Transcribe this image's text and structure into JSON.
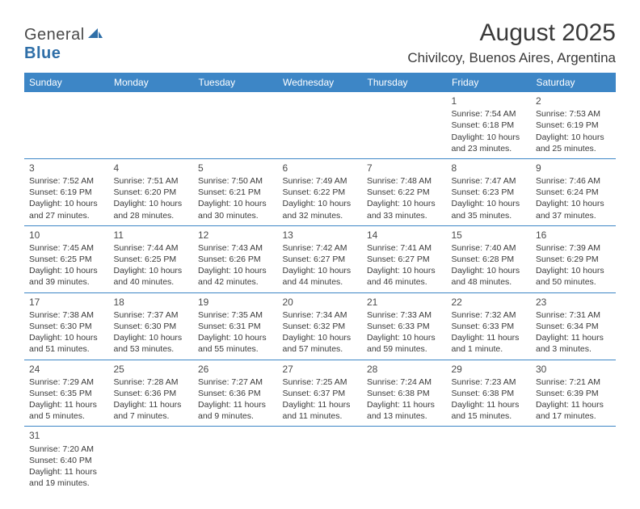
{
  "logo": {
    "part1": "General",
    "part2": "Blue"
  },
  "title": "August 2025",
  "location": "Chivilcoy, Buenos Aires, Argentina",
  "header_bg": "#3d86c6",
  "header_fg": "#ffffff",
  "border_color": "#3d86c6",
  "text_color": "#3a3a3a",
  "day_headers": [
    "Sunday",
    "Monday",
    "Tuesday",
    "Wednesday",
    "Thursday",
    "Friday",
    "Saturday"
  ],
  "weeks": [
    [
      null,
      null,
      null,
      null,
      null,
      {
        "n": "1",
        "sr": "Sunrise: 7:54 AM",
        "ss": "Sunset: 6:18 PM",
        "dl": "Daylight: 10 hours and 23 minutes."
      },
      {
        "n": "2",
        "sr": "Sunrise: 7:53 AM",
        "ss": "Sunset: 6:19 PM",
        "dl": "Daylight: 10 hours and 25 minutes."
      }
    ],
    [
      {
        "n": "3",
        "sr": "Sunrise: 7:52 AM",
        "ss": "Sunset: 6:19 PM",
        "dl": "Daylight: 10 hours and 27 minutes."
      },
      {
        "n": "4",
        "sr": "Sunrise: 7:51 AM",
        "ss": "Sunset: 6:20 PM",
        "dl": "Daylight: 10 hours and 28 minutes."
      },
      {
        "n": "5",
        "sr": "Sunrise: 7:50 AM",
        "ss": "Sunset: 6:21 PM",
        "dl": "Daylight: 10 hours and 30 minutes."
      },
      {
        "n": "6",
        "sr": "Sunrise: 7:49 AM",
        "ss": "Sunset: 6:22 PM",
        "dl": "Daylight: 10 hours and 32 minutes."
      },
      {
        "n": "7",
        "sr": "Sunrise: 7:48 AM",
        "ss": "Sunset: 6:22 PM",
        "dl": "Daylight: 10 hours and 33 minutes."
      },
      {
        "n": "8",
        "sr": "Sunrise: 7:47 AM",
        "ss": "Sunset: 6:23 PM",
        "dl": "Daylight: 10 hours and 35 minutes."
      },
      {
        "n": "9",
        "sr": "Sunrise: 7:46 AM",
        "ss": "Sunset: 6:24 PM",
        "dl": "Daylight: 10 hours and 37 minutes."
      }
    ],
    [
      {
        "n": "10",
        "sr": "Sunrise: 7:45 AM",
        "ss": "Sunset: 6:25 PM",
        "dl": "Daylight: 10 hours and 39 minutes."
      },
      {
        "n": "11",
        "sr": "Sunrise: 7:44 AM",
        "ss": "Sunset: 6:25 PM",
        "dl": "Daylight: 10 hours and 40 minutes."
      },
      {
        "n": "12",
        "sr": "Sunrise: 7:43 AM",
        "ss": "Sunset: 6:26 PM",
        "dl": "Daylight: 10 hours and 42 minutes."
      },
      {
        "n": "13",
        "sr": "Sunrise: 7:42 AM",
        "ss": "Sunset: 6:27 PM",
        "dl": "Daylight: 10 hours and 44 minutes."
      },
      {
        "n": "14",
        "sr": "Sunrise: 7:41 AM",
        "ss": "Sunset: 6:27 PM",
        "dl": "Daylight: 10 hours and 46 minutes."
      },
      {
        "n": "15",
        "sr": "Sunrise: 7:40 AM",
        "ss": "Sunset: 6:28 PM",
        "dl": "Daylight: 10 hours and 48 minutes."
      },
      {
        "n": "16",
        "sr": "Sunrise: 7:39 AM",
        "ss": "Sunset: 6:29 PM",
        "dl": "Daylight: 10 hours and 50 minutes."
      }
    ],
    [
      {
        "n": "17",
        "sr": "Sunrise: 7:38 AM",
        "ss": "Sunset: 6:30 PM",
        "dl": "Daylight: 10 hours and 51 minutes."
      },
      {
        "n": "18",
        "sr": "Sunrise: 7:37 AM",
        "ss": "Sunset: 6:30 PM",
        "dl": "Daylight: 10 hours and 53 minutes."
      },
      {
        "n": "19",
        "sr": "Sunrise: 7:35 AM",
        "ss": "Sunset: 6:31 PM",
        "dl": "Daylight: 10 hours and 55 minutes."
      },
      {
        "n": "20",
        "sr": "Sunrise: 7:34 AM",
        "ss": "Sunset: 6:32 PM",
        "dl": "Daylight: 10 hours and 57 minutes."
      },
      {
        "n": "21",
        "sr": "Sunrise: 7:33 AM",
        "ss": "Sunset: 6:33 PM",
        "dl": "Daylight: 10 hours and 59 minutes."
      },
      {
        "n": "22",
        "sr": "Sunrise: 7:32 AM",
        "ss": "Sunset: 6:33 PM",
        "dl": "Daylight: 11 hours and 1 minute."
      },
      {
        "n": "23",
        "sr": "Sunrise: 7:31 AM",
        "ss": "Sunset: 6:34 PM",
        "dl": "Daylight: 11 hours and 3 minutes."
      }
    ],
    [
      {
        "n": "24",
        "sr": "Sunrise: 7:29 AM",
        "ss": "Sunset: 6:35 PM",
        "dl": "Daylight: 11 hours and 5 minutes."
      },
      {
        "n": "25",
        "sr": "Sunrise: 7:28 AM",
        "ss": "Sunset: 6:36 PM",
        "dl": "Daylight: 11 hours and 7 minutes."
      },
      {
        "n": "26",
        "sr": "Sunrise: 7:27 AM",
        "ss": "Sunset: 6:36 PM",
        "dl": "Daylight: 11 hours and 9 minutes."
      },
      {
        "n": "27",
        "sr": "Sunrise: 7:25 AM",
        "ss": "Sunset: 6:37 PM",
        "dl": "Daylight: 11 hours and 11 minutes."
      },
      {
        "n": "28",
        "sr": "Sunrise: 7:24 AM",
        "ss": "Sunset: 6:38 PM",
        "dl": "Daylight: 11 hours and 13 minutes."
      },
      {
        "n": "29",
        "sr": "Sunrise: 7:23 AM",
        "ss": "Sunset: 6:38 PM",
        "dl": "Daylight: 11 hours and 15 minutes."
      },
      {
        "n": "30",
        "sr": "Sunrise: 7:21 AM",
        "ss": "Sunset: 6:39 PM",
        "dl": "Daylight: 11 hours and 17 minutes."
      }
    ],
    [
      {
        "n": "31",
        "sr": "Sunrise: 7:20 AM",
        "ss": "Sunset: 6:40 PM",
        "dl": "Daylight: 11 hours and 19 minutes."
      },
      null,
      null,
      null,
      null,
      null,
      null
    ]
  ]
}
